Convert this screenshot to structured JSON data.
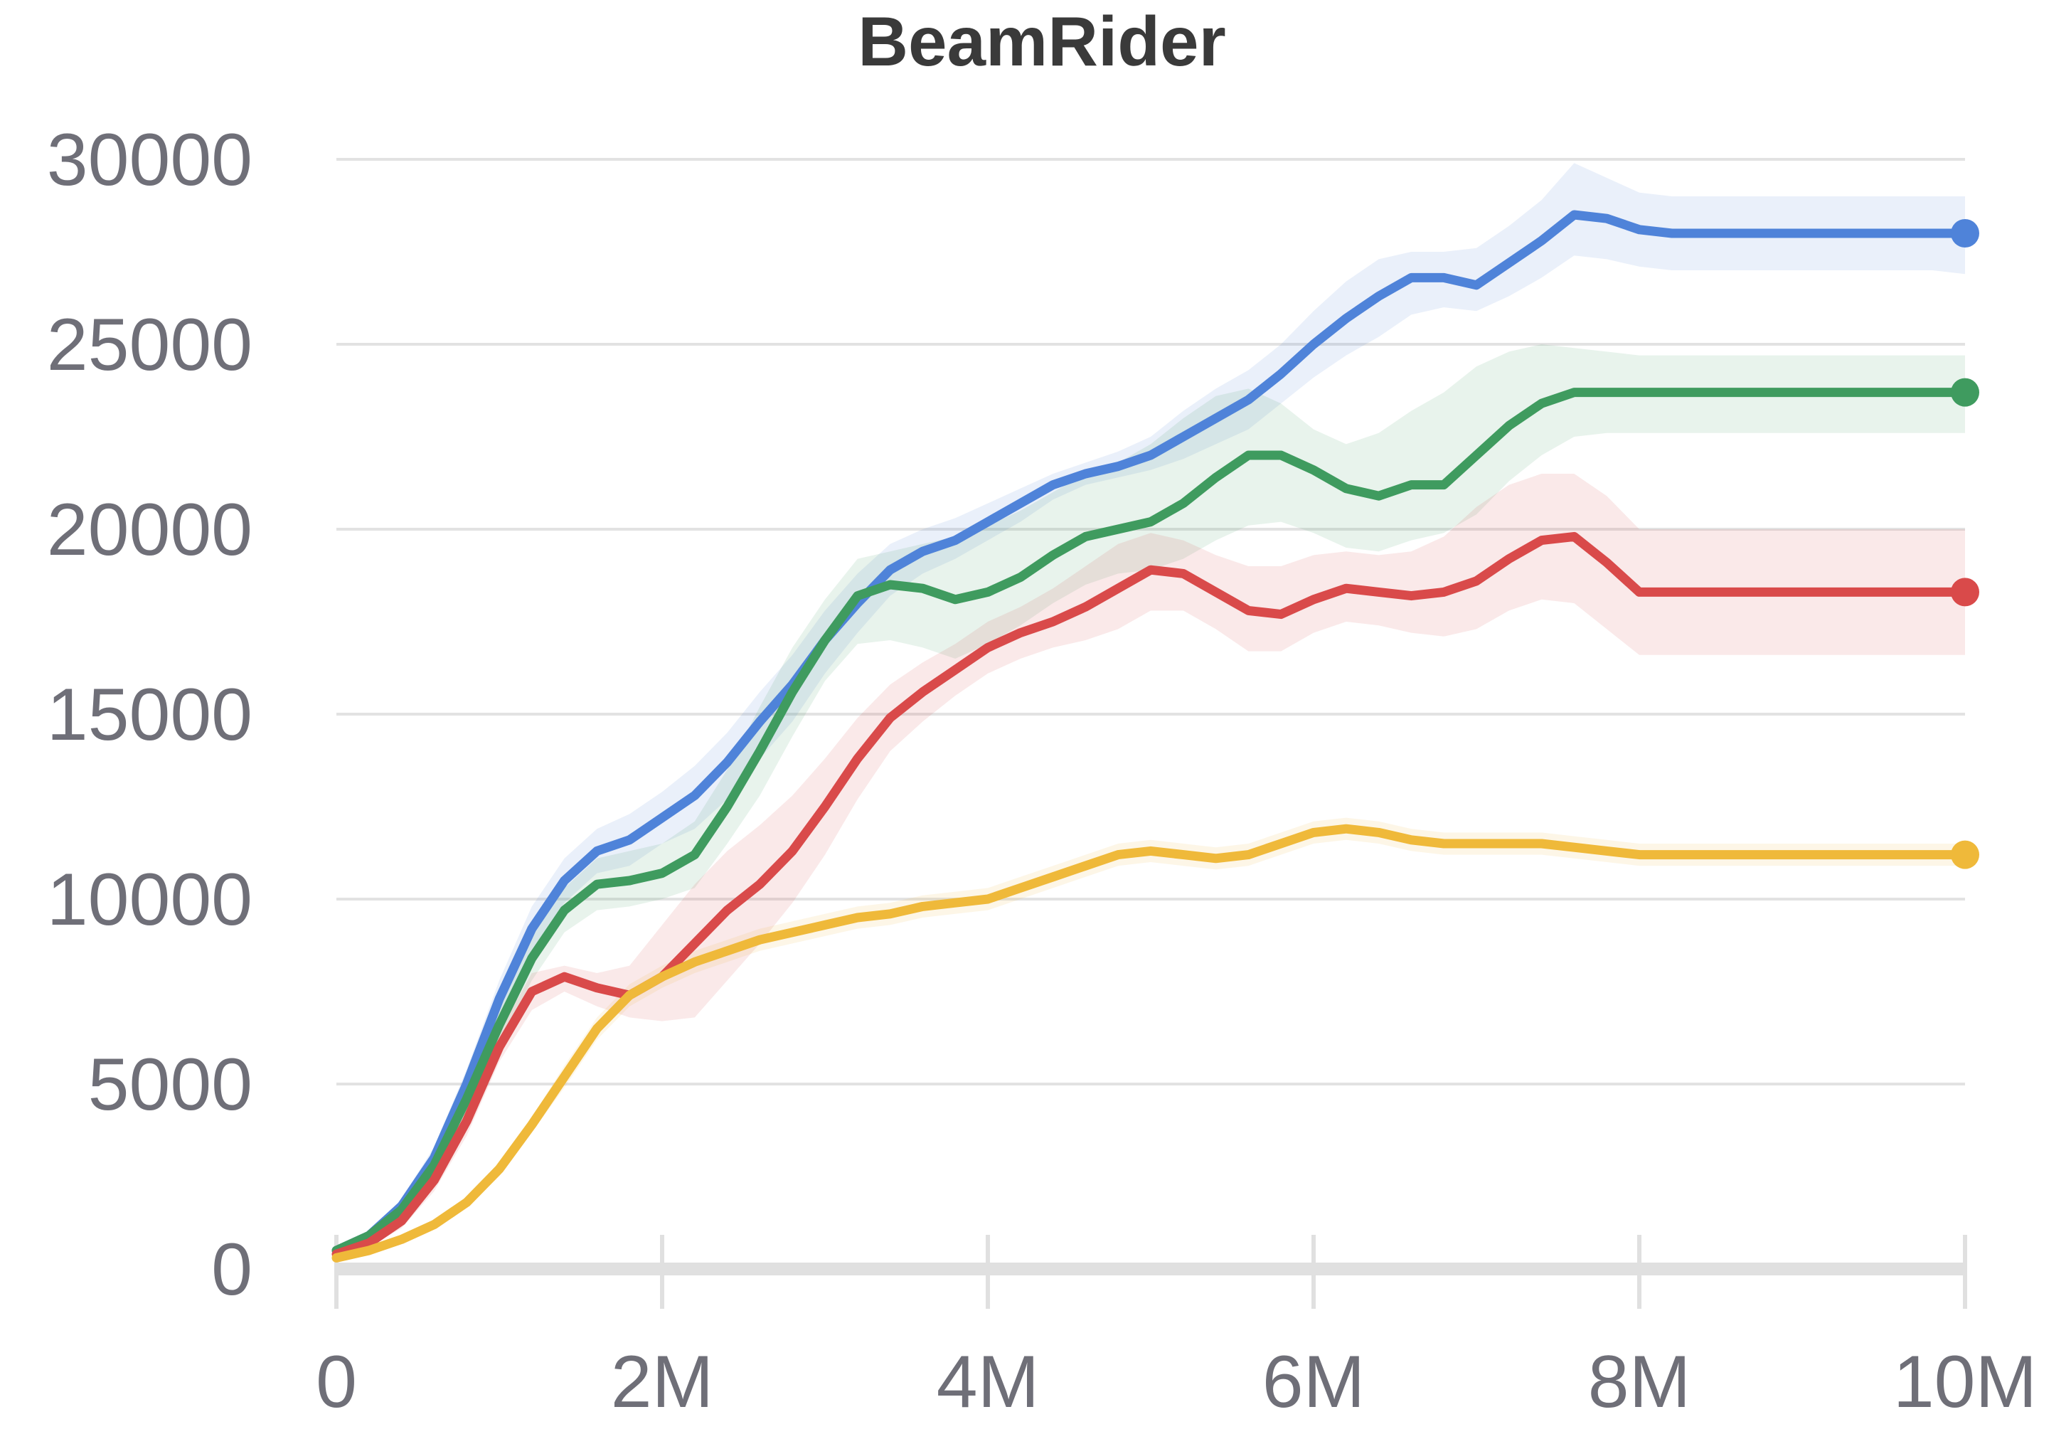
{
  "chart_data": {
    "type": "line",
    "title": "BeamRider",
    "xlabel": "",
    "ylabel": "",
    "xlim": [
      0,
      10000000
    ],
    "ylim": [
      0,
      30000
    ],
    "x_ticks": [
      {
        "value": 0,
        "label": "0"
      },
      {
        "value": 2000000,
        "label": "2M"
      },
      {
        "value": 4000000,
        "label": "4M"
      },
      {
        "value": 6000000,
        "label": "6M"
      },
      {
        "value": 8000000,
        "label": "8M"
      },
      {
        "value": 10000000,
        "label": "10M"
      }
    ],
    "y_ticks": [
      {
        "value": 0,
        "label": "0"
      },
      {
        "value": 5000,
        "label": "5000"
      },
      {
        "value": 10000,
        "label": "10000"
      },
      {
        "value": 15000,
        "label": "15000"
      },
      {
        "value": 20000,
        "label": "20000"
      },
      {
        "value": 25000,
        "label": "25000"
      },
      {
        "value": 30000,
        "label": "30000"
      }
    ],
    "grid": true,
    "legend": "none",
    "x": [
      0,
      200000,
      400000,
      600000,
      800000,
      1000000,
      1200000,
      1400000,
      1600000,
      1800000,
      2000000,
      2200000,
      2400000,
      2600000,
      2800000,
      3000000,
      3200000,
      3400000,
      3600000,
      3800000,
      4000000,
      4200000,
      4400000,
      4600000,
      4800000,
      5000000,
      5200000,
      5400000,
      5600000,
      5800000,
      6000000,
      6200000,
      6400000,
      6600000,
      6800000,
      7000000,
      7200000,
      7400000,
      7600000,
      7800000,
      8000000,
      8200000,
      8400000,
      8600000,
      8800000,
      9000000,
      9200000,
      9400000,
      9600000,
      9800000,
      10000000
    ],
    "series": [
      {
        "color": "#4f83d9",
        "values": [
          500,
          900,
          1700,
          3000,
          5000,
          7300,
          9200,
          10500,
          11300,
          11600,
          12200,
          12800,
          13700,
          14800,
          15800,
          17000,
          18000,
          18900,
          19400,
          19700,
          20200,
          20700,
          21200,
          21500,
          21700,
          22000,
          22500,
          23000,
          23500,
          24200,
          25000,
          25700,
          26300,
          26800,
          26800,
          26600,
          27200,
          27800,
          28500,
          28400,
          28100,
          28000,
          28000,
          28000,
          28000,
          28000,
          28000,
          28000,
          28000,
          28000,
          28000
        ],
        "upper": [
          600,
          1000,
          1900,
          3300,
          5400,
          7800,
          9800,
          11100,
          11900,
          12300,
          12900,
          13600,
          14500,
          15600,
          16600,
          17800,
          18800,
          19600,
          20000,
          20300,
          20700,
          21100,
          21500,
          21800,
          22100,
          22500,
          23200,
          23800,
          24300,
          25000,
          25900,
          26700,
          27300,
          27500,
          27500,
          27600,
          28200,
          28900,
          29900,
          29500,
          29100,
          29000,
          29000,
          29000,
          29000,
          29000,
          29000,
          29000,
          29000,
          29000,
          29000
        ],
        "lower": [
          400,
          800,
          1500,
          2700,
          4600,
          6800,
          8600,
          9900,
          10700,
          10900,
          11500,
          11900,
          12700,
          13800,
          14800,
          16100,
          17200,
          18200,
          18800,
          19200,
          19700,
          20200,
          20800,
          21200,
          21400,
          21600,
          21900,
          22300,
          22700,
          23400,
          24100,
          24700,
          25200,
          25800,
          26000,
          25900,
          26300,
          26800,
          27400,
          27300,
          27100,
          27000,
          27000,
          27000,
          27000,
          27000,
          27000,
          27000,
          27000,
          27000,
          26900
        ]
      },
      {
        "color": "#3f9b5f",
        "values": [
          500,
          900,
          1600,
          2800,
          4600,
          6600,
          8400,
          9700,
          10400,
          10500,
          10700,
          11200,
          12500,
          14000,
          15600,
          17000,
          18200,
          18500,
          18400,
          18100,
          18300,
          18700,
          19300,
          19800,
          20000,
          20200,
          20700,
          21400,
          22000,
          22000,
          21600,
          21100,
          20900,
          21200,
          21200,
          22000,
          22800,
          23400,
          23700,
          23700,
          23700,
          23700,
          23700,
          23700,
          23700,
          23700,
          23700,
          23700,
          23700,
          23700,
          23700
        ],
        "upper": [
          600,
          1000,
          1800,
          3100,
          5000,
          7100,
          9000,
          10300,
          11100,
          11300,
          11500,
          12100,
          13500,
          15200,
          16800,
          18100,
          19200,
          19400,
          19600,
          19800,
          20100,
          20500,
          21000,
          21500,
          21800,
          22300,
          23000,
          23600,
          23800,
          23400,
          22700,
          22300,
          22600,
          23200,
          23700,
          24400,
          24800,
          25000,
          24900,
          24800,
          24700,
          24700,
          24700,
          24700,
          24700,
          24700,
          24700,
          24700,
          24700,
          24700,
          24700
        ],
        "lower": [
          400,
          800,
          1400,
          2500,
          4200,
          6100,
          7800,
          9100,
          9700,
          9800,
          10000,
          10300,
          11500,
          12800,
          14400,
          15900,
          16900,
          17000,
          16800,
          16500,
          16900,
          17400,
          18000,
          18500,
          18800,
          18900,
          19200,
          19700,
          20100,
          20200,
          19900,
          19500,
          19400,
          19700,
          19900,
          20400,
          21300,
          22000,
          22500,
          22600,
          22600,
          22600,
          22600,
          22600,
          22600,
          22600,
          22600,
          22600,
          22600,
          22600,
          22600
        ]
      },
      {
        "color": "#d94a4a",
        "values": [
          400,
          700,
          1300,
          2400,
          4000,
          6000,
          7500,
          7900,
          7600,
          7400,
          7900,
          8800,
          9700,
          10400,
          11300,
          12500,
          13800,
          14900,
          15600,
          16200,
          16800,
          17200,
          17500,
          17900,
          18400,
          18900,
          18800,
          18300,
          17800,
          17700,
          18100,
          18400,
          18300,
          18200,
          18300,
          18600,
          19200,
          19700,
          19800,
          19100,
          18300,
          18300,
          18300,
          18300,
          18300,
          18300,
          18300,
          18300,
          18300,
          18300,
          18300
        ],
        "upper": [
          500,
          800,
          1500,
          2700,
          4400,
          6400,
          8000,
          8200,
          8000,
          8200,
          9300,
          10400,
          11300,
          12000,
          12800,
          13800,
          14900,
          15800,
          16400,
          16900,
          17500,
          17900,
          18400,
          19000,
          19600,
          19900,
          19700,
          19300,
          19000,
          19000,
          19300,
          19400,
          19300,
          19400,
          19800,
          20600,
          21200,
          21500,
          21500,
          20900,
          20000,
          20000,
          20000,
          20000,
          20000,
          20000,
          20000,
          20000,
          20000,
          20000,
          20000
        ],
        "lower": [
          300,
          600,
          1100,
          2100,
          3600,
          5600,
          7000,
          7500,
          7100,
          6800,
          6700,
          6800,
          7800,
          8800,
          9900,
          11200,
          12700,
          14000,
          14800,
          15500,
          16100,
          16500,
          16800,
          17000,
          17300,
          17800,
          17800,
          17300,
          16700,
          16700,
          17200,
          17500,
          17400,
          17200,
          17100,
          17300,
          17800,
          18100,
          18000,
          17300,
          16600,
          16600,
          16600,
          16600,
          16600,
          16600,
          16600,
          16600,
          16600,
          16600,
          16600
        ]
      },
      {
        "color": "#efb93a",
        "values": [
          300,
          500,
          800,
          1200,
          1800,
          2700,
          3900,
          5200,
          6500,
          7400,
          7900,
          8300,
          8600,
          8900,
          9100,
          9300,
          9500,
          9600,
          9800,
          9900,
          10000,
          10300,
          10600,
          10900,
          11200,
          11300,
          11200,
          11100,
          11200,
          11500,
          11800,
          11900,
          11800,
          11600,
          11500,
          11500,
          11500,
          11500,
          11400,
          11300,
          11200,
          11200,
          11200,
          11200,
          11200,
          11200,
          11200,
          11200,
          11200,
          11200,
          11200
        ],
        "upper": [
          350,
          550,
          850,
          1300,
          1900,
          2900,
          4100,
          5500,
          6800,
          7700,
          8200,
          8600,
          8900,
          9200,
          9400,
          9600,
          9800,
          9900,
          10100,
          10200,
          10300,
          10600,
          10900,
          11200,
          11500,
          11600,
          11500,
          11400,
          11500,
          11800,
          12100,
          12200,
          12100,
          11900,
          11800,
          11800,
          11800,
          11800,
          11700,
          11600,
          11500,
          11500,
          11500,
          11500,
          11500,
          11500,
          11500,
          11500,
          11500,
          11500,
          11500
        ],
        "lower": [
          250,
          450,
          750,
          1100,
          1700,
          2500,
          3700,
          4900,
          6200,
          7100,
          7600,
          8000,
          8300,
          8600,
          8800,
          9000,
          9200,
          9300,
          9500,
          9600,
          9700,
          10000,
          10300,
          10600,
          10900,
          11000,
          10900,
          10800,
          10900,
          11200,
          11500,
          11600,
          11500,
          11300,
          11200,
          11200,
          11200,
          11200,
          11100,
          11000,
          10900,
          10900,
          10900,
          10900,
          10900,
          10900,
          10900,
          10900,
          10900,
          10900,
          10900
        ]
      }
    ]
  }
}
